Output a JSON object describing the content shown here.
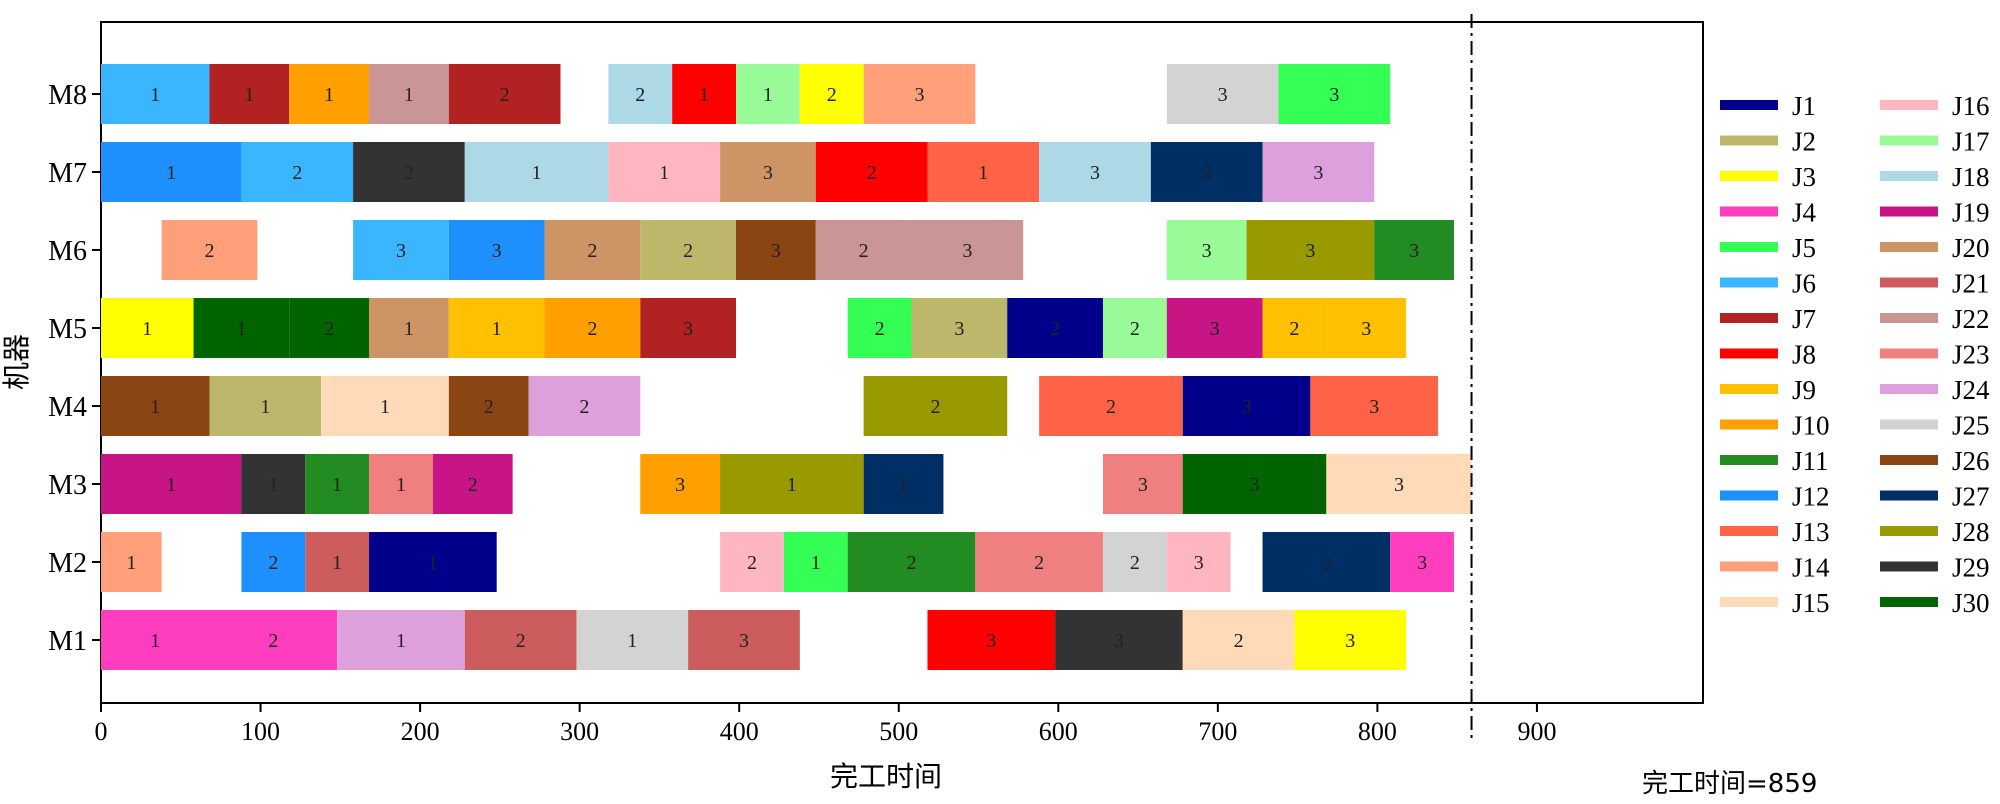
{
  "chart_data": {
    "type": "gantt",
    "xlabel": "完工时间",
    "ylabel": "机器",
    "xlim": [
      0,
      900
    ],
    "xticks": [
      0,
      100,
      200,
      300,
      400,
      500,
      600,
      700,
      800,
      900
    ],
    "machines": [
      "M1",
      "M2",
      "M3",
      "M4",
      "M5",
      "M6",
      "M7",
      "M8"
    ],
    "makespan": 859,
    "makespan_label": "完工时间=859",
    "jobs": [
      {
        "name": "J1",
        "color": "#00008B"
      },
      {
        "name": "J2",
        "color": "#BDB76B"
      },
      {
        "name": "J3",
        "color": "#FFFF00"
      },
      {
        "name": "J4",
        "color": "#FF3EBF"
      },
      {
        "name": "J5",
        "color": "#33FF55"
      },
      {
        "name": "J6",
        "color": "#39B6FF"
      },
      {
        "name": "J7",
        "color": "#B22222"
      },
      {
        "name": "J8",
        "color": "#FF0000"
      },
      {
        "name": "J9",
        "color": "#FFC000"
      },
      {
        "name": "J10",
        "color": "#FFA000"
      },
      {
        "name": "J11",
        "color": "#228B22"
      },
      {
        "name": "J12",
        "color": "#1E90FF"
      },
      {
        "name": "J13",
        "color": "#FF6347"
      },
      {
        "name": "J14",
        "color": "#FFA07A"
      },
      {
        "name": "J15",
        "color": "#FFDAB9"
      },
      {
        "name": "J16",
        "color": "#FFB6C1"
      },
      {
        "name": "J17",
        "color": "#98FB98"
      },
      {
        "name": "J18",
        "color": "#ADD8E6"
      },
      {
        "name": "J19",
        "color": "#C71585"
      },
      {
        "name": "J20",
        "color": "#CD9565"
      },
      {
        "name": "J21",
        "color": "#CD5C5C"
      },
      {
        "name": "J22",
        "color": "#CA9595"
      },
      {
        "name": "J23",
        "color": "#F08080"
      },
      {
        "name": "J24",
        "color": "#DDA0DD"
      },
      {
        "name": "J25",
        "color": "#D3D3D3"
      },
      {
        "name": "J26",
        "color": "#8B4513"
      },
      {
        "name": "J27",
        "color": "#002F66"
      },
      {
        "name": "J28",
        "color": "#999900"
      },
      {
        "name": "J29",
        "color": "#333333"
      },
      {
        "name": "J30",
        "color": "#006400"
      }
    ],
    "operations": [
      {
        "machine": "M1",
        "job": "J4",
        "start": 0,
        "end": 68,
        "label": "1"
      },
      {
        "machine": "M1",
        "job": "J4",
        "start": 68,
        "end": 148,
        "label": "2"
      },
      {
        "machine": "M1",
        "job": "J24",
        "start": 148,
        "end": 228,
        "label": "1"
      },
      {
        "machine": "M1",
        "job": "J21",
        "start": 228,
        "end": 298,
        "label": "2"
      },
      {
        "machine": "M1",
        "job": "J25",
        "start": 298,
        "end": 368,
        "label": "1"
      },
      {
        "machine": "M1",
        "job": "J21",
        "start": 368,
        "end": 438,
        "label": "3"
      },
      {
        "machine": "M1",
        "job": "J8",
        "start": 518,
        "end": 598,
        "label": "3"
      },
      {
        "machine": "M1",
        "job": "J29",
        "start": 598,
        "end": 678,
        "label": "3"
      },
      {
        "machine": "M1",
        "job": "J15",
        "start": 678,
        "end": 748,
        "label": "2"
      },
      {
        "machine": "M1",
        "job": "J3",
        "start": 748,
        "end": 818,
        "label": "3"
      },
      {
        "machine": "M2",
        "job": "J14",
        "start": 0,
        "end": 38,
        "label": "1"
      },
      {
        "machine": "M2",
        "job": "J12",
        "start": 88,
        "end": 128,
        "label": "2"
      },
      {
        "machine": "M2",
        "job": "J21",
        "start": 128,
        "end": 168,
        "label": "1"
      },
      {
        "machine": "M2",
        "job": "J1",
        "start": 168,
        "end": 248,
        "label": "1"
      },
      {
        "machine": "M2",
        "job": "J16",
        "start": 388,
        "end": 428,
        "label": "2"
      },
      {
        "machine": "M2",
        "job": "J5",
        "start": 428,
        "end": 468,
        "label": "1"
      },
      {
        "machine": "M2",
        "job": "J11",
        "start": 468,
        "end": 548,
        "label": "2"
      },
      {
        "machine": "M2",
        "job": "J23",
        "start": 548,
        "end": 628,
        "label": "2"
      },
      {
        "machine": "M2",
        "job": "J25",
        "start": 628,
        "end": 668,
        "label": "2"
      },
      {
        "machine": "M2",
        "job": "J16",
        "start": 668,
        "end": 708,
        "label": "3"
      },
      {
        "machine": "M2",
        "job": "J27",
        "start": 728,
        "end": 808,
        "label": "3"
      },
      {
        "machine": "M2",
        "job": "J4",
        "start": 808,
        "end": 848,
        "label": "3"
      },
      {
        "machine": "M3",
        "job": "J19",
        "start": 0,
        "end": 88,
        "label": "1"
      },
      {
        "machine": "M3",
        "job": "J29",
        "start": 88,
        "end": 128,
        "label": "1"
      },
      {
        "machine": "M3",
        "job": "J11",
        "start": 128,
        "end": 168,
        "label": "1"
      },
      {
        "machine": "M3",
        "job": "J23",
        "start": 168,
        "end": 208,
        "label": "1"
      },
      {
        "machine": "M3",
        "job": "J19",
        "start": 208,
        "end": 258,
        "label": "2"
      },
      {
        "machine": "M3",
        "job": "J10",
        "start": 338,
        "end": 388,
        "label": "3"
      },
      {
        "machine": "M3",
        "job": "J28",
        "start": 388,
        "end": 478,
        "label": "1"
      },
      {
        "machine": "M3",
        "job": "J27",
        "start": 478,
        "end": 528,
        "label": "1"
      },
      {
        "machine": "M3",
        "job": "J23",
        "start": 628,
        "end": 678,
        "label": "3"
      },
      {
        "machine": "M3",
        "job": "J30",
        "start": 678,
        "end": 768,
        "label": "3"
      },
      {
        "machine": "M3",
        "job": "J15",
        "start": 768,
        "end": 859,
        "label": "3"
      },
      {
        "machine": "M4",
        "job": "J26",
        "start": 0,
        "end": 68,
        "label": "1"
      },
      {
        "machine": "M4",
        "job": "J2",
        "start": 68,
        "end": 138,
        "label": "1"
      },
      {
        "machine": "M4",
        "job": "J15",
        "start": 138,
        "end": 218,
        "label": "1"
      },
      {
        "machine": "M4",
        "job": "J26",
        "start": 218,
        "end": 268,
        "label": "2"
      },
      {
        "machine": "M4",
        "job": "J24",
        "start": 268,
        "end": 338,
        "label": "2"
      },
      {
        "machine": "M4",
        "job": "J28",
        "start": 478,
        "end": 568,
        "label": "2"
      },
      {
        "machine": "M4",
        "job": "J13",
        "start": 588,
        "end": 678,
        "label": "2"
      },
      {
        "machine": "M4",
        "job": "J1",
        "start": 678,
        "end": 758,
        "label": "3"
      },
      {
        "machine": "M4",
        "job": "J13",
        "start": 758,
        "end": 838,
        "label": "3"
      },
      {
        "machine": "M5",
        "job": "J3",
        "start": 0,
        "end": 58,
        "label": "1"
      },
      {
        "machine": "M5",
        "job": "J30",
        "start": 58,
        "end": 118,
        "label": "1"
      },
      {
        "machine": "M5",
        "job": "J30",
        "start": 118,
        "end": 168,
        "label": "2"
      },
      {
        "machine": "M5",
        "job": "J20",
        "start": 168,
        "end": 218,
        "label": "1"
      },
      {
        "machine": "M5",
        "job": "J9",
        "start": 218,
        "end": 278,
        "label": "1"
      },
      {
        "machine": "M5",
        "job": "J10",
        "start": 278,
        "end": 338,
        "label": "2"
      },
      {
        "machine": "M5",
        "job": "J7",
        "start": 338,
        "end": 398,
        "label": "3"
      },
      {
        "machine": "M5",
        "job": "J5",
        "start": 468,
        "end": 508,
        "label": "2"
      },
      {
        "machine": "M5",
        "job": "J2",
        "start": 508,
        "end": 568,
        "label": "3"
      },
      {
        "machine": "M5",
        "job": "J1",
        "start": 568,
        "end": 628,
        "label": "2"
      },
      {
        "machine": "M5",
        "job": "J17",
        "start": 628,
        "end": 668,
        "label": "2"
      },
      {
        "machine": "M5",
        "job": "J19",
        "start": 668,
        "end": 728,
        "label": "3"
      },
      {
        "machine": "M5",
        "job": "J9",
        "start": 728,
        "end": 768,
        "label": "2"
      },
      {
        "machine": "M5",
        "job": "J9",
        "start": 768,
        "end": 818,
        "label": "3"
      },
      {
        "machine": "M6",
        "job": "J14",
        "start": 38,
        "end": 98,
        "label": "2"
      },
      {
        "machine": "M6",
        "job": "J6",
        "start": 158,
        "end": 218,
        "label": "3"
      },
      {
        "machine": "M6",
        "job": "J12",
        "start": 218,
        "end": 278,
        "label": "3"
      },
      {
        "machine": "M6",
        "job": "J20",
        "start": 278,
        "end": 338,
        "label": "2"
      },
      {
        "machine": "M6",
        "job": "J2",
        "start": 338,
        "end": 398,
        "label": "2"
      },
      {
        "machine": "M6",
        "job": "J26",
        "start": 398,
        "end": 448,
        "label": "3"
      },
      {
        "machine": "M6",
        "job": "J22",
        "start": 448,
        "end": 508,
        "label": "2"
      },
      {
        "machine": "M6",
        "job": "J22",
        "start": 508,
        "end": 578,
        "label": "3"
      },
      {
        "machine": "M6",
        "job": "J17",
        "start": 668,
        "end": 718,
        "label": "3"
      },
      {
        "machine": "M6",
        "job": "J28",
        "start": 718,
        "end": 798,
        "label": "3"
      },
      {
        "machine": "M6",
        "job": "J11",
        "start": 798,
        "end": 848,
        "label": "3"
      },
      {
        "machine": "M7",
        "job": "J12",
        "start": 0,
        "end": 88,
        "label": "1"
      },
      {
        "machine": "M7",
        "job": "J6",
        "start": 88,
        "end": 158,
        "label": "2"
      },
      {
        "machine": "M7",
        "job": "J29",
        "start": 158,
        "end": 228,
        "label": "2"
      },
      {
        "machine": "M7",
        "job": "J18",
        "start": 228,
        "end": 318,
        "label": "1"
      },
      {
        "machine": "M7",
        "job": "J16",
        "start": 318,
        "end": 388,
        "label": "1"
      },
      {
        "machine": "M7",
        "job": "J20",
        "start": 388,
        "end": 448,
        "label": "3"
      },
      {
        "machine": "M7",
        "job": "J8",
        "start": 448,
        "end": 518,
        "label": "2"
      },
      {
        "machine": "M7",
        "job": "J13",
        "start": 518,
        "end": 588,
        "label": "1"
      },
      {
        "machine": "M7",
        "job": "J18",
        "start": 588,
        "end": 658,
        "label": "3"
      },
      {
        "machine": "M7",
        "job": "J27",
        "start": 658,
        "end": 728,
        "label": "2"
      },
      {
        "machine": "M7",
        "job": "J24",
        "start": 728,
        "end": 798,
        "label": "3"
      },
      {
        "machine": "M8",
        "job": "J6",
        "start": 0,
        "end": 68,
        "label": "1"
      },
      {
        "machine": "M8",
        "job": "J7",
        "start": 68,
        "end": 118,
        "label": "1"
      },
      {
        "machine": "M8",
        "job": "J10",
        "start": 118,
        "end": 168,
        "label": "1"
      },
      {
        "machine": "M8",
        "job": "J22",
        "start": 168,
        "end": 218,
        "label": "1"
      },
      {
        "machine": "M8",
        "job": "J7",
        "start": 218,
        "end": 288,
        "label": "2"
      },
      {
        "machine": "M8",
        "job": "J18",
        "start": 318,
        "end": 358,
        "label": "2"
      },
      {
        "machine": "M8",
        "job": "J8",
        "start": 358,
        "end": 398,
        "label": "1"
      },
      {
        "machine": "M8",
        "job": "J17",
        "start": 398,
        "end": 438,
        "label": "1"
      },
      {
        "machine": "M8",
        "job": "J3",
        "start": 438,
        "end": 478,
        "label": "2"
      },
      {
        "machine": "M8",
        "job": "J14",
        "start": 478,
        "end": 548,
        "label": "3"
      },
      {
        "machine": "M8",
        "job": "J25",
        "start": 668,
        "end": 738,
        "label": "3"
      },
      {
        "machine": "M8",
        "job": "J5",
        "start": 738,
        "end": 808,
        "label": "3"
      }
    ]
  }
}
